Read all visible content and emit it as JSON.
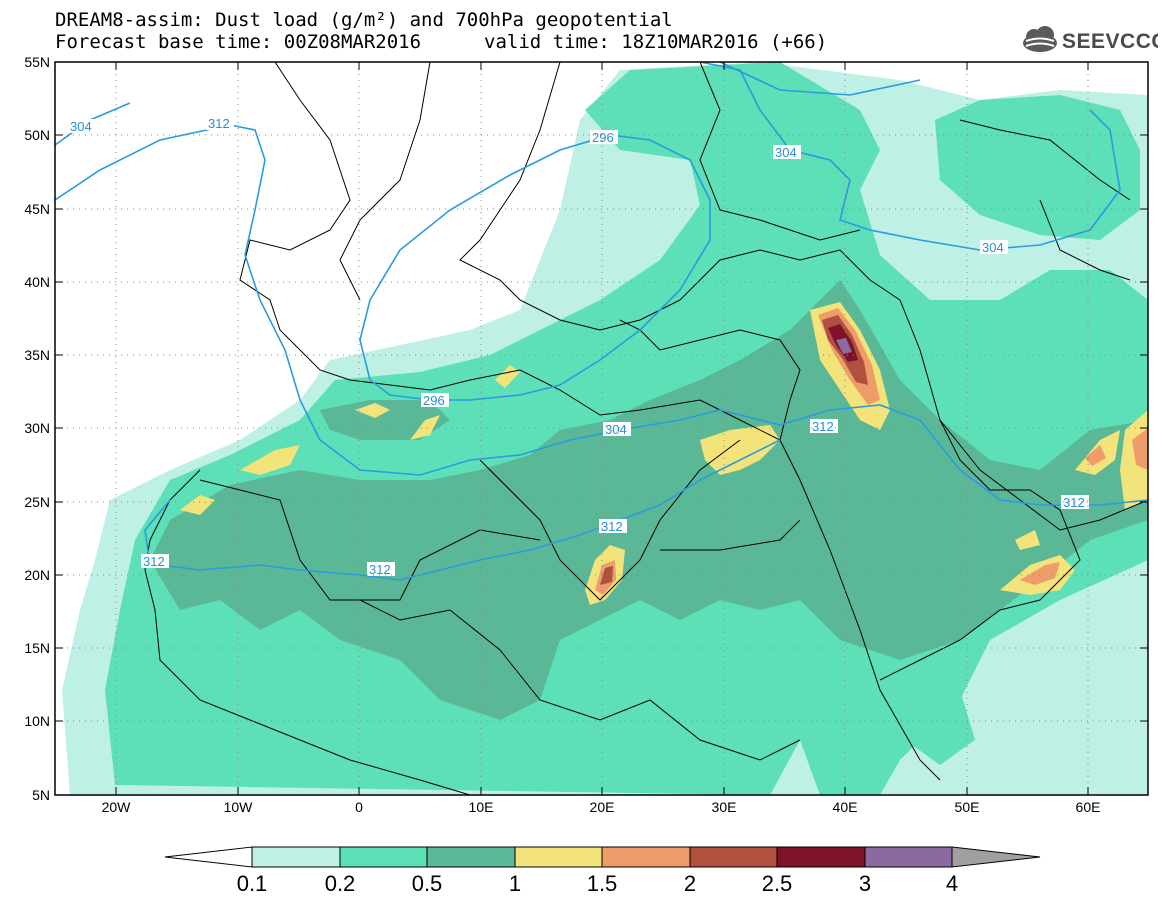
{
  "header": {
    "title": "DREAM8-assim: Dust load (g/m²) and 700hPa geopotential",
    "base_time": "Forecast base time: 00Z08MAR2016",
    "valid_time": "valid time: 18Z10MAR2016 (+66)"
  },
  "logo": {
    "text": "SEEVCCC",
    "icon": "cloud-logo-icon"
  },
  "map": {
    "lon_range": [
      -25,
      65
    ],
    "lat_range": [
      5,
      55
    ],
    "lon_ticks": [
      "20W",
      "10W",
      "0",
      "10E",
      "20E",
      "30E",
      "40E",
      "50E",
      "60E"
    ],
    "lat_ticks": [
      "55N",
      "50N",
      "45N",
      "40N",
      "35N",
      "30N",
      "25N",
      "20N",
      "15N",
      "10N",
      "5N"
    ],
    "contour_color": "#2a9be0",
    "contour_labels": [
      "304",
      "312",
      "296",
      "304",
      "304",
      "296",
      "304",
      "312",
      "312",
      "312",
      "312",
      "312"
    ]
  },
  "colorbar": {
    "levels": [
      "0.1",
      "0.2",
      "0.5",
      "1",
      "1.5",
      "2",
      "2.5",
      "3",
      "4"
    ],
    "colors": [
      "#ffffff",
      "#bff0e6",
      "#5ddfb8",
      "#5ab897",
      "#f2e47a",
      "#ee9c6a",
      "#b0503f",
      "#7e1229",
      "#8a6aa0",
      "#a0a0a0"
    ]
  }
}
